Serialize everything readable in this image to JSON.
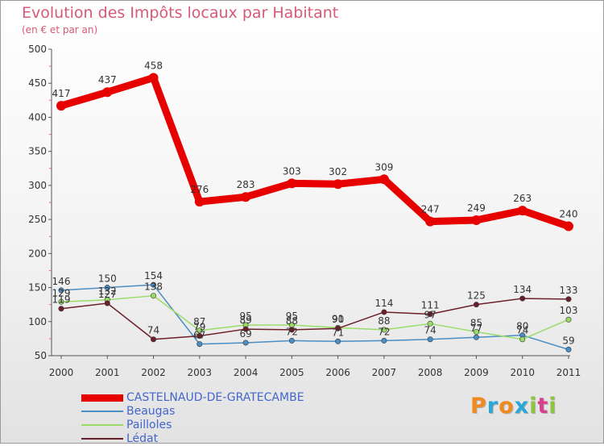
{
  "title": "Evolution des Impôts locaux par Habitant",
  "subtitle": "(en € et par an)",
  "logo": {
    "letters": [
      "P",
      "r",
      "o",
      "x",
      "i",
      "t",
      "i"
    ],
    "colors": [
      "#f08a1e",
      "#2aa6d8",
      "#f08a1e",
      "#2aa6d8",
      "#8cc63f",
      "#d8408a",
      "#8cc63f"
    ]
  },
  "chart_data": {
    "type": "line",
    "categories": [
      "2000",
      "2001",
      "2002",
      "2003",
      "2004",
      "2005",
      "2006",
      "2007",
      "2008",
      "2009",
      "2010",
      "2011"
    ],
    "ylim": [
      50,
      500
    ],
    "yticks": [
      "50",
      "100",
      "150",
      "200",
      "250",
      "300",
      "350",
      "400",
      "450",
      "500"
    ],
    "grid": false,
    "legend_position": "bottom-left",
    "series": [
      {
        "name": "CASTELNAUD-DE-GRATECAMBE",
        "color": "#e60000",
        "values": [
          417,
          437,
          458,
          276,
          283,
          303,
          302,
          309,
          247,
          249,
          263,
          240
        ]
      },
      {
        "name": "Beaugas",
        "color": "#4a8ec4",
        "values": [
          146,
          150,
          154,
          67,
          69,
          72,
          71,
          72,
          74,
          77,
          80,
          59
        ]
      },
      {
        "name": "Pailloles",
        "color": "#99dd66",
        "values": [
          129,
          132,
          138,
          87,
          95,
          95,
          91,
          88,
          97,
          85,
          74,
          103
        ]
      },
      {
        "name": "Lédat",
        "color": "#6b1f2a",
        "values": [
          119,
          127,
          74,
          79,
          89,
          88,
          90,
          114,
          111,
          125,
          134,
          133
        ]
      }
    ]
  }
}
